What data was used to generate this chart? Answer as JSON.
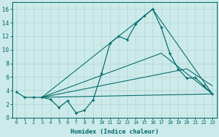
{
  "title": "",
  "xlabel": "Humidex (Indice chaleur)",
  "background_color": "#cceaea",
  "grid_color": "#b8d8d8",
  "line_color": "#006868",
  "main_x": [
    0,
    1,
    2,
    3,
    4,
    5,
    6,
    7,
    8,
    9,
    10,
    11,
    12,
    13,
    14,
    15,
    16,
    17,
    18,
    19,
    20,
    21,
    22,
    23
  ],
  "main_y": [
    3.8,
    3.0,
    3.0,
    3.0,
    2.7,
    1.5,
    2.5,
    0.7,
    1.1,
    2.6,
    6.5,
    11.0,
    12.0,
    11.5,
    13.8,
    15.0,
    16.0,
    13.3,
    9.5,
    7.2,
    5.8,
    5.9,
    4.7,
    3.5
  ],
  "fan_lines": [
    [
      [
        3,
        3.0
      ],
      [
        16,
        16.0
      ],
      [
        23,
        3.5
      ]
    ],
    [
      [
        3,
        3.0
      ],
      [
        17,
        9.5
      ],
      [
        23,
        3.5
      ]
    ],
    [
      [
        3,
        3.0
      ],
      [
        20,
        7.2
      ],
      [
        23,
        4.7
      ]
    ],
    [
      [
        3,
        3.0
      ],
      [
        23,
        3.5
      ]
    ]
  ],
  "ylim": [
    0,
    17
  ],
  "xlim": [
    -0.5,
    23.5
  ],
  "yticks": [
    0,
    2,
    4,
    6,
    8,
    10,
    12,
    14,
    16
  ],
  "xticks": [
    0,
    1,
    2,
    3,
    4,
    5,
    6,
    7,
    8,
    9,
    10,
    11,
    12,
    13,
    14,
    15,
    16,
    17,
    18,
    19,
    20,
    21,
    22,
    23
  ]
}
